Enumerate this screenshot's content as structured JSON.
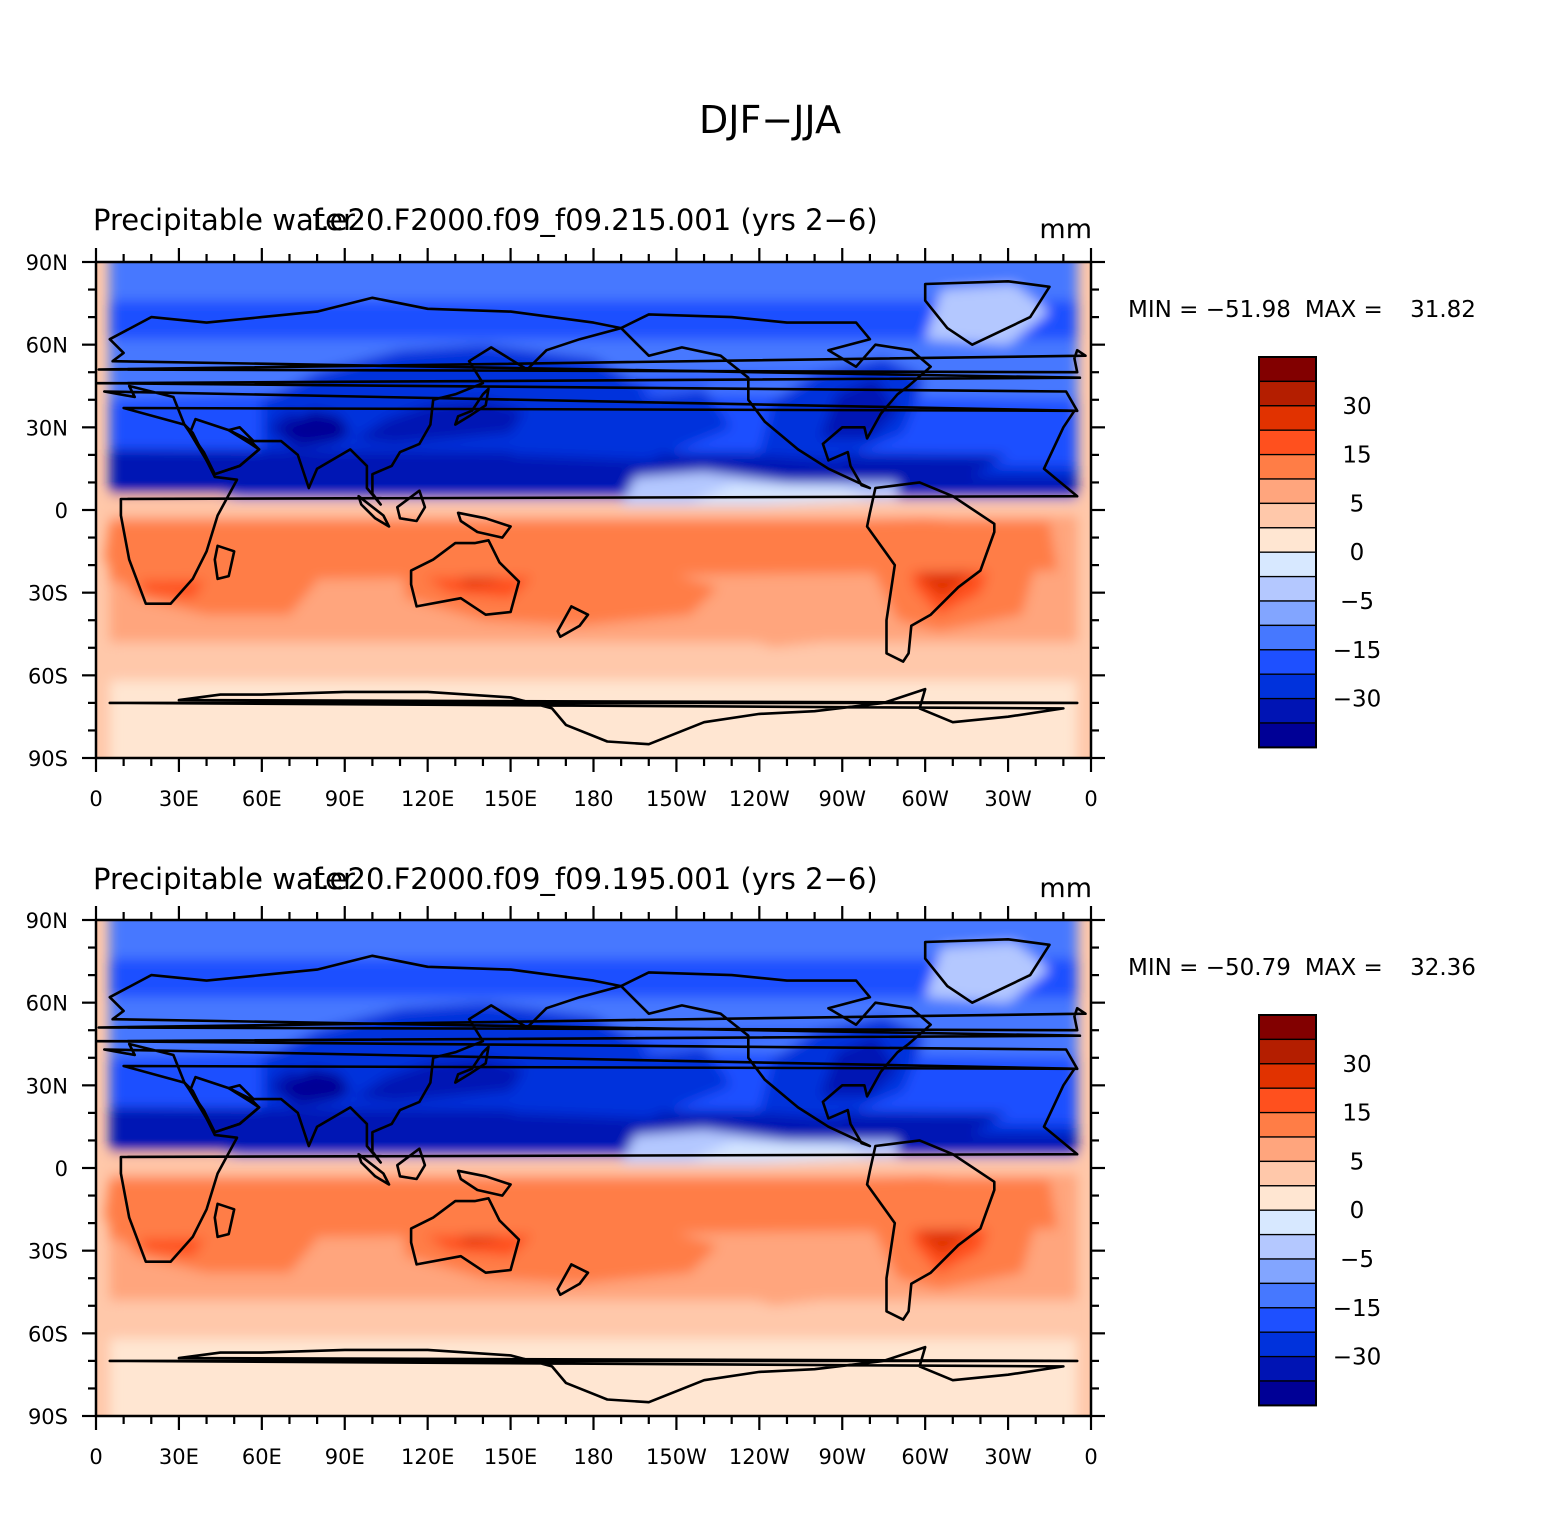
{
  "main_title": "DJF−JJA",
  "lat_labels": [
    "90N",
    "60N",
    "30N",
    "0",
    "30S",
    "60S",
    "90S"
  ],
  "lon_labels": [
    "0",
    "30E",
    "60E",
    "90E",
    "120E",
    "150E",
    "180",
    "150W",
    "120W",
    "90W",
    "60W",
    "30W",
    "0"
  ],
  "colorbar_labels": [
    "30",
    "15",
    "5",
    "0",
    "−5",
    "−15",
    "−30"
  ],
  "colors": {
    "scale": [
      "#000096",
      "#0014b4",
      "#0032dc",
      "#1e50ff",
      "#4678ff",
      "#82a5ff",
      "#b4c8ff",
      "#d7e8ff",
      "#ffe6d2",
      "#ffc8aa",
      "#ffa57d",
      "#ff7d46",
      "#ff501e",
      "#e13200",
      "#b41e00",
      "#820000"
    ],
    "line": "#000000"
  },
  "panels": [
    {
      "left_title": "Precipitable water",
      "center_title": "f.e20.F2000.f09_f09.215.001 (yrs 2−6)",
      "units": "mm",
      "min_label": "MIN = ",
      "min_value": "−51.98",
      "max_label": "MAX = ",
      "max_value": "31.82"
    },
    {
      "left_title": "Precipitable water",
      "center_title": "f.e20.F2000.f09_f09.195.001 (yrs 2−6)",
      "units": "mm",
      "min_label": "MIN = ",
      "min_value": "−50.79",
      "max_label": "MAX = ",
      "max_value": "32.36"
    }
  ]
}
